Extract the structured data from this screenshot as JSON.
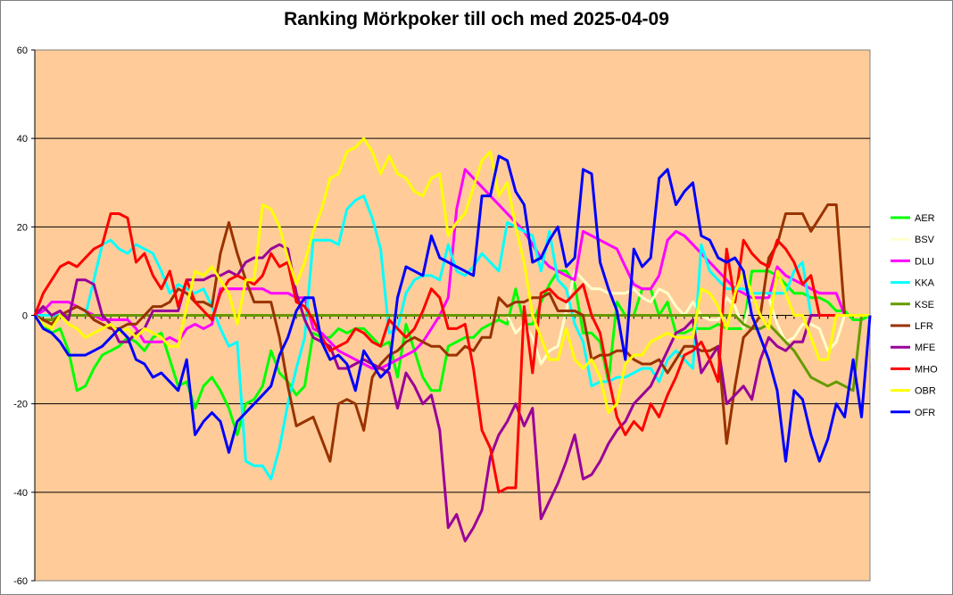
{
  "chart_data": {
    "type": "line",
    "title": "Ranking Mörkpoker till och med 2025-04-09",
    "xlabel": "",
    "ylabel": "",
    "ylim": [
      -60,
      60
    ],
    "yticks": [
      -60,
      -40,
      -20,
      0,
      20,
      40,
      60
    ],
    "grid": true,
    "legend": "right",
    "plot_bg": "#FFCC99",
    "series": [
      {
        "name": "AER",
        "color": "#00FF00",
        "values": [
          0,
          -2,
          -4,
          -3,
          -8,
          -17,
          -16,
          -12,
          -9,
          -8,
          -7,
          -5,
          -6,
          -8,
          -5,
          -4,
          -10,
          -16,
          -15,
          -21,
          -16,
          -14,
          -17,
          -21,
          -27,
          -20,
          -19,
          -16,
          -8,
          -13,
          -15,
          -18,
          -16,
          -4,
          -5,
          -5,
          -3,
          -4,
          -3,
          -3,
          -5,
          -7,
          -6,
          -14,
          -2,
          -8,
          -14,
          -17,
          -17,
          -7,
          -6,
          -5,
          -5,
          -3,
          -2,
          -1,
          -2,
          6,
          -2,
          -2,
          3,
          7,
          10,
          10,
          7,
          -4,
          -4,
          -6,
          -15,
          3,
          0,
          0,
          6,
          6,
          0,
          3,
          -4,
          -4,
          -3,
          -3,
          -3,
          -2,
          -3,
          -3,
          -3,
          10,
          10,
          10,
          9,
          7,
          5,
          5,
          4,
          4,
          3,
          1,
          1,
          -1,
          -1,
          0
        ]
      },
      {
        "name": "BSV",
        "color": "#FFFFCC",
        "values": [
          0,
          0,
          0,
          0,
          0,
          0,
          0,
          0,
          0,
          0,
          0,
          0,
          0,
          0,
          0,
          0,
          0,
          0,
          0,
          0,
          0,
          0,
          0,
          0,
          0,
          0,
          0,
          0,
          0,
          0,
          0,
          0,
          0,
          0,
          0,
          0,
          0,
          0,
          0,
          0,
          0,
          0,
          0,
          0,
          0,
          0,
          0,
          0,
          0,
          0,
          0,
          0,
          0,
          0,
          0,
          0,
          0,
          -4,
          -2,
          -5,
          -11,
          -8,
          -7,
          1,
          10,
          8,
          6,
          6,
          5,
          5,
          5,
          6,
          4,
          3,
          6,
          5,
          2,
          0,
          3,
          0,
          -1,
          -1,
          4,
          2,
          -3,
          5,
          5,
          4,
          -2,
          -6,
          -5,
          -2,
          -2,
          -3,
          -8,
          -6,
          0,
          0,
          0,
          0
        ]
      },
      {
        "name": "DLU",
        "color": "#FF00FF",
        "values": [
          0,
          1,
          3,
          3,
          3,
          2,
          1,
          0,
          -1,
          -1,
          -1,
          -1,
          -3,
          -6,
          -6,
          -6,
          -5,
          -6,
          -3,
          -2,
          -3,
          -2,
          6,
          6,
          6,
          6,
          6,
          6,
          5,
          5,
          5,
          4,
          4,
          -3,
          -4,
          -6,
          -8,
          -9,
          -10,
          -11,
          -12,
          -12,
          -11,
          -10,
          -9,
          -8,
          -6,
          -3,
          0,
          4,
          24,
          33,
          31,
          29,
          27,
          25,
          23,
          21,
          19,
          16,
          13,
          11,
          10,
          9,
          8,
          19,
          18,
          17,
          16,
          15,
          11,
          7,
          6,
          6,
          9,
          17,
          19,
          18,
          16,
          14,
          12,
          10,
          8,
          6,
          5,
          4,
          4,
          4,
          11,
          9,
          8,
          7,
          6,
          5,
          5,
          5,
          0,
          0,
          0,
          0
        ]
      },
      {
        "name": "KKA",
        "color": "#00FFFF",
        "values": [
          0,
          0,
          0,
          0,
          0,
          0,
          0,
          8,
          16,
          17,
          15,
          14,
          16,
          15,
          14,
          10,
          5,
          7,
          6,
          5,
          6,
          2,
          -3,
          -7,
          -6,
          -33,
          -34,
          -34,
          -37,
          -30,
          -20,
          -12,
          -5,
          17,
          17,
          17,
          16,
          24,
          26,
          27,
          22,
          15,
          -4,
          -3,
          5,
          8,
          9,
          9,
          8,
          16,
          10,
          9,
          11,
          14,
          12,
          10,
          21,
          20,
          19,
          18,
          10,
          19,
          8,
          6,
          -2,
          -6,
          -16,
          -15,
          -15,
          -14,
          -14,
          -13,
          -12,
          -12,
          -15,
          -10,
          -8,
          -10,
          -12,
          16,
          10,
          8,
          6,
          6,
          6,
          5,
          5,
          5,
          5,
          5,
          10,
          12,
          0,
          0,
          0,
          0,
          0,
          0,
          0,
          0
        ]
      },
      {
        "name": "KSE",
        "color": "#669900",
        "values": [
          0,
          -1,
          -1,
          0,
          0,
          0,
          0,
          0,
          0,
          0,
          0,
          0,
          0,
          0,
          0,
          0,
          0,
          0,
          0,
          0,
          0,
          0,
          0,
          0,
          0,
          0,
          0,
          0,
          0,
          0,
          0,
          0,
          0,
          0,
          0,
          0,
          0,
          0,
          0,
          0,
          0,
          0,
          0,
          0,
          0,
          0,
          0,
          0,
          0,
          0,
          0,
          0,
          0,
          0,
          0,
          0,
          0,
          0,
          0,
          0,
          0,
          0,
          0,
          0,
          0,
          0,
          0,
          0,
          0,
          0,
          0,
          0,
          0,
          0,
          0,
          0,
          0,
          0,
          0,
          0,
          0,
          0,
          0,
          0,
          -2,
          -3,
          -3,
          -2,
          -4,
          -6,
          -8,
          -11,
          -14,
          -15,
          -16,
          -15,
          -16,
          -17,
          0,
          0
        ]
      },
      {
        "name": "LFR",
        "color": "#993300",
        "values": [
          0,
          -1,
          -2,
          0,
          1,
          2,
          1,
          -1,
          -2,
          -3,
          -3,
          -2,
          -2,
          0,
          2,
          2,
          3,
          6,
          5,
          3,
          3,
          2,
          14,
          21,
          14,
          8,
          3,
          3,
          3,
          -5,
          -16,
          -25,
          -24,
          -23,
          -28,
          -33,
          -20,
          -19,
          -20,
          -26,
          -14,
          -11,
          -9,
          -8,
          -6,
          -5,
          -6,
          -7,
          -7,
          -9,
          -9,
          -7,
          -8,
          -5,
          -5,
          4,
          2,
          3,
          3,
          4,
          4,
          5,
          1,
          1,
          1,
          0,
          -10,
          -9,
          -9,
          -8,
          -8,
          -10,
          -11,
          -11,
          -10,
          -13,
          -10,
          -7,
          -7,
          -8,
          -8,
          -7,
          -29,
          -16,
          -5,
          -3,
          0,
          13,
          16,
          23,
          23,
          23,
          19,
          22,
          25,
          25,
          0,
          0,
          0,
          0
        ]
      },
      {
        "name": "MFE",
        "color": "#990099",
        "values": [
          0,
          2,
          0,
          1,
          -1,
          8,
          8,
          7,
          0,
          -2,
          -6,
          -6,
          -4,
          -3,
          1,
          1,
          1,
          1,
          8,
          8,
          8,
          9,
          9,
          10,
          9,
          12,
          13,
          13,
          15,
          16,
          15,
          5,
          -1,
          -5,
          -6,
          -7,
          -12,
          -12,
          -11,
          -10,
          -11,
          -12,
          -13,
          -21,
          -13,
          -16,
          -20,
          -18,
          -26,
          -48,
          -45,
          -51,
          -48,
          -44,
          -32,
          -27,
          -24,
          -20,
          -25,
          -21,
          -46,
          -42,
          -38,
          -33,
          -27,
          -37,
          -36,
          -33,
          -29,
          -26,
          -24,
          -20,
          -18,
          -16,
          -12,
          -8,
          -4,
          -3,
          -1,
          -13,
          -10,
          -7,
          -20,
          -18,
          -16,
          -19,
          -10,
          -5,
          -7,
          -8,
          -6,
          -6,
          0,
          0,
          0,
          0,
          0,
          0,
          0,
          0
        ]
      },
      {
        "name": "MHO",
        "color": "#FF0000",
        "values": [
          0,
          5,
          8,
          11,
          12,
          11,
          13,
          15,
          16,
          23,
          23,
          22,
          12,
          14,
          9,
          6,
          10,
          2,
          8,
          3,
          1,
          -1,
          5,
          8,
          9,
          8,
          7,
          9,
          14,
          11,
          12,
          3,
          2,
          -1,
          -5,
          -8,
          -7,
          -6,
          -3,
          -4,
          -6,
          -7,
          -1,
          -3,
          -5,
          -3,
          1,
          6,
          4,
          -3,
          -3,
          -2,
          -12,
          -26,
          -30,
          -40,
          -39,
          -39,
          2,
          -13,
          5,
          6,
          4,
          3,
          5,
          7,
          0,
          -4,
          -14,
          -23,
          -27,
          -24,
          -26,
          -20,
          -23,
          -18,
          -14,
          -9,
          -8,
          -6,
          -10,
          -15,
          15,
          3,
          17,
          14,
          12,
          11,
          17,
          15,
          12,
          7,
          9,
          0,
          0,
          0,
          0,
          0,
          0,
          0
        ]
      },
      {
        "name": "OBR",
        "color": "#FFFF00",
        "values": [
          0,
          -2,
          -3,
          0,
          -2,
          -3,
          -5,
          -4,
          -3,
          -2,
          -4,
          -3,
          -5,
          -3,
          -4,
          -5,
          -7,
          -7,
          2,
          10,
          9,
          11,
          8,
          5,
          -2,
          8,
          8,
          25,
          24,
          20,
          13,
          7,
          12,
          19,
          24,
          31,
          32,
          37,
          38,
          40,
          37,
          32,
          36,
          32,
          31,
          28,
          27,
          31,
          32,
          18,
          21,
          23,
          29,
          35,
          37,
          27,
          30,
          20,
          12,
          0,
          -5,
          -10,
          -10,
          -3,
          -10,
          -12,
          -10,
          -14,
          -22,
          -20,
          -11,
          -9,
          -9,
          -6,
          -5,
          -4,
          -5,
          -5,
          -5,
          6,
          5,
          2,
          -3,
          5,
          10,
          5,
          0,
          -3,
          10,
          5,
          0,
          0,
          -5,
          -10,
          -10,
          0,
          0,
          0,
          0,
          0
        ]
      },
      {
        "name": "OFR",
        "color": "#0000FF",
        "values": [
          0,
          -3,
          -4,
          -6,
          -9,
          -9,
          -9,
          -8,
          -7,
          -5,
          -3,
          -5,
          -10,
          -11,
          -14,
          -13,
          -15,
          -17,
          -10,
          -27,
          -24,
          -22,
          -24,
          -31,
          -24,
          -22,
          -20,
          -18,
          -16,
          -9,
          -5,
          1,
          4,
          4,
          -6,
          -10,
          -9,
          -11,
          -17,
          -8,
          -11,
          -14,
          -12,
          4,
          11,
          10,
          9,
          18,
          13,
          12,
          11,
          10,
          9,
          27,
          27,
          36,
          35,
          28,
          25,
          12,
          13,
          17,
          20,
          11,
          13,
          33,
          32,
          12,
          6,
          1,
          -10,
          15,
          11,
          13,
          31,
          33,
          25,
          28,
          30,
          18,
          17,
          13,
          12,
          13,
          10,
          0,
          -5,
          -10,
          -17,
          -33,
          -17,
          -19,
          -27,
          -33,
          -28,
          -20,
          -23,
          -10,
          -23,
          0
        ]
      }
    ]
  }
}
